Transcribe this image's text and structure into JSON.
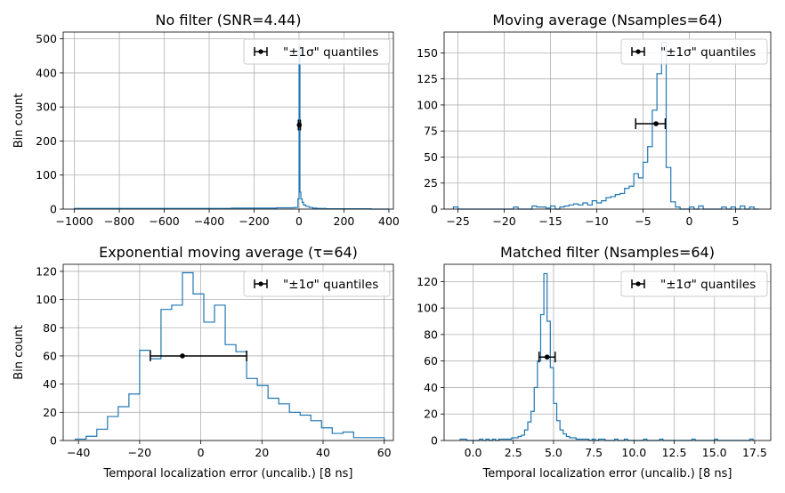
{
  "chart_data": [
    {
      "type": "histogram",
      "title": "No filter (SNR=4.44)",
      "xlabel": "",
      "ylabel": "Bin count",
      "xlim": [
        -1050,
        420
      ],
      "ylim": [
        0,
        520
      ],
      "xticks": [
        -1000,
        -800,
        -600,
        -400,
        -200,
        0,
        200,
        400
      ],
      "xtick_labels": [
        "−1000",
        "−800",
        "−600",
        "−400",
        "−200",
        "0",
        "200",
        "400"
      ],
      "yticks": [
        0,
        100,
        200,
        300,
        400,
        500
      ],
      "ytick_labels": [
        "0",
        "100",
        "200",
        "300",
        "400",
        "500"
      ],
      "grid": true,
      "legend": {
        "label": "\"±1σ\" quantiles",
        "placement": "top-right"
      },
      "series": [
        {
          "bin_edges": [
            -1000,
            -900,
            -800,
            -700,
            -600,
            -500,
            -400,
            -300,
            -200,
            -100,
            -20,
            -5,
            0,
            4,
            8,
            14,
            20,
            30,
            45,
            60,
            80,
            120,
            160,
            200,
            260,
            320,
            400
          ],
          "counts": [
            2,
            2,
            2,
            2,
            2,
            2,
            2,
            3,
            3,
            4,
            5,
            30,
            480,
            50,
            30,
            20,
            12,
            8,
            5,
            3,
            2,
            1,
            1,
            1,
            1,
            0
          ]
        }
      ],
      "quantile_marker": {
        "center": 1,
        "low": -3,
        "high": 6,
        "y": 247
      }
    },
    {
      "type": "histogram",
      "title": "Moving average (Nsamples=64)",
      "xlabel": "",
      "ylabel": "",
      "xlim": [
        -26.5,
        8.8
      ],
      "ylim": [
        0,
        170
      ],
      "xticks": [
        -25,
        -20,
        -15,
        -10,
        -5,
        0,
        5
      ],
      "xtick_labels": [
        "−25",
        "−20",
        "−15",
        "−10",
        "−5",
        "0",
        "5"
      ],
      "yticks": [
        0,
        25,
        50,
        75,
        100,
        125,
        150
      ],
      "ytick_labels": [
        "0",
        "25",
        "50",
        "75",
        "100",
        "125",
        "150"
      ],
      "grid": true,
      "legend": {
        "label": "\"±1σ\" quantiles",
        "placement": "top-right"
      },
      "series": [
        {
          "bin_edges": [
            -25.5,
            -25,
            -24.5,
            -24,
            -23.5,
            -23,
            -22.5,
            -22,
            -21.5,
            -21,
            -20.5,
            -20,
            -19.5,
            -19,
            -18.5,
            -18,
            -17.5,
            -17,
            -16.5,
            -16,
            -15.5,
            -15,
            -14.5,
            -14,
            -13.5,
            -13,
            -12.5,
            -12,
            -11.5,
            -11,
            -10.5,
            -10,
            -9.5,
            -9,
            -8.5,
            -8,
            -7.5,
            -7,
            -6.5,
            -6,
            -5.5,
            -5,
            -4.5,
            -4,
            -3.5,
            -3,
            -2.5,
            -2,
            -1.5,
            -1,
            -0.5,
            0,
            0.5,
            1,
            1.5,
            2,
            2.5,
            3,
            3.5,
            4,
            4.5,
            5,
            5.5,
            6,
            6.5,
            7,
            7.5
          ],
          "counts": [
            2,
            0,
            0,
            0,
            0,
            0,
            0,
            0,
            0,
            0,
            0,
            0,
            0,
            2,
            0,
            0,
            0,
            3,
            2,
            2,
            1,
            3,
            0,
            2,
            3,
            4,
            5,
            4,
            6,
            4,
            8,
            6,
            8,
            11,
            12,
            14,
            15,
            20,
            22,
            34,
            30,
            45,
            60,
            95,
            130,
            160,
            40,
            7,
            2,
            0,
            0,
            2,
            0,
            3,
            0,
            0,
            0,
            0,
            2,
            0,
            2,
            0,
            3,
            0,
            2,
            0
          ]
        }
      ],
      "quantile_marker": {
        "center": -3.6,
        "low": -5.8,
        "high": -2.6,
        "y": 82
      }
    },
    {
      "type": "histogram",
      "title": "Exponential moving average (τ=64)",
      "xlabel": "Temporal localization error (uncalib.) [8 ns]",
      "ylabel": "Bin count",
      "xlim": [
        -45,
        63
      ],
      "ylim": [
        0,
        125
      ],
      "xticks": [
        -40,
        -20,
        0,
        20,
        40,
        60
      ],
      "xtick_labels": [
        "−40",
        "−20",
        "0",
        "20",
        "40",
        "60"
      ],
      "yticks": [
        0,
        20,
        40,
        60,
        80,
        100,
        120
      ],
      "ytick_labels": [
        "0",
        "20",
        "40",
        "60",
        "80",
        "100",
        "120"
      ],
      "grid": true,
      "legend": {
        "label": "\"±1σ\" quantiles",
        "placement": "top-right"
      },
      "series": [
        {
          "bin_edges": [
            -41,
            -37.5,
            -34,
            -30.5,
            -27,
            -23.5,
            -20,
            -16.5,
            -13,
            -9.5,
            -6,
            -2.5,
            1,
            4.5,
            8,
            11.5,
            15,
            18.5,
            22,
            25.5,
            29,
            32.5,
            36,
            39.5,
            43,
            46.5,
            50,
            53.5,
            57,
            60
          ],
          "counts": [
            1,
            3,
            8,
            17,
            24,
            33,
            64,
            58,
            93,
            96,
            119,
            104,
            84,
            96,
            68,
            63,
            44,
            39,
            30,
            26,
            20,
            18,
            14,
            9,
            5,
            6,
            2,
            2,
            2
          ]
        }
      ],
      "quantile_marker": {
        "center": -6,
        "low": -16.5,
        "high": 15,
        "y": 60
      }
    },
    {
      "type": "histogram",
      "title": "Matched filter (Nsamples=64)",
      "xlabel": "Temporal localization error (uncalib.) [8 ns]",
      "ylabel": "",
      "xlim": [
        -1.8,
        18.5
      ],
      "ylim": [
        0,
        133
      ],
      "xticks": [
        0.0,
        2.5,
        5.0,
        7.5,
        10.0,
        12.5,
        15.0,
        17.5
      ],
      "xtick_labels": [
        "0.0",
        "2.5",
        "5.0",
        "7.5",
        "10.0",
        "12.5",
        "15.0",
        "17.5"
      ],
      "yticks": [
        0,
        20,
        40,
        60,
        80,
        100,
        120
      ],
      "ytick_labels": [
        "0",
        "20",
        "40",
        "60",
        "80",
        "100",
        "120"
      ],
      "grid": true,
      "legend": {
        "label": "\"±1σ\" quantiles",
        "placement": "top-right"
      },
      "series": [
        {
          "bin_edges": [
            -0.8,
            -0.6,
            -0.4,
            -0.2,
            0,
            0.2,
            0.4,
            0.6,
            0.8,
            1.0,
            1.2,
            1.4,
            1.6,
            1.8,
            2.0,
            2.2,
            2.4,
            2.6,
            2.8,
            3.0,
            3.2,
            3.4,
            3.6,
            3.8,
            4.0,
            4.2,
            4.4,
            4.6,
            4.8,
            5.0,
            5.2,
            5.4,
            5.6,
            5.8,
            6.0,
            6.2,
            6.4,
            6.6,
            6.8,
            7.0,
            7.2,
            7.4,
            7.6,
            7.8,
            8.0,
            8.2,
            8.4,
            8.6,
            8.8,
            9.0,
            9.2,
            9.4,
            9.6,
            9.8,
            10.0,
            10.2,
            10.4,
            10.6,
            10.8,
            11.0,
            11.2,
            11.4,
            11.6,
            11.8,
            12.0,
            12.2,
            12.4,
            12.6,
            12.8,
            13.0,
            13.2,
            13.4,
            13.6,
            13.8,
            14.0,
            14.2,
            14.4,
            14.6,
            14.8,
            15.0,
            15.2,
            15.4,
            15.6,
            15.8,
            16.0,
            16.2,
            16.4,
            16.6,
            16.8,
            17.0,
            17.2,
            17.4
          ],
          "counts": [
            1,
            1,
            0,
            0,
            0,
            0,
            1,
            0,
            1,
            0,
            1,
            0,
            1,
            1,
            1,
            1,
            2,
            2,
            3,
            4,
            8,
            14,
            22,
            40,
            60,
            95,
            126,
            90,
            55,
            28,
            15,
            8,
            5,
            3,
            2,
            2,
            1,
            1,
            1,
            1,
            0,
            1,
            0,
            1,
            1,
            0,
            0,
            0,
            1,
            0,
            0,
            1,
            0,
            0,
            0,
            0,
            0,
            1,
            0,
            0,
            0,
            0,
            1,
            0,
            0,
            0,
            0,
            0,
            0,
            0,
            0,
            0,
            1,
            0,
            0,
            0,
            0,
            0,
            0,
            1,
            0,
            0,
            0,
            0,
            0,
            0,
            0,
            0,
            0,
            0,
            1
          ]
        }
      ],
      "quantile_marker": {
        "center": 4.6,
        "low": 4.1,
        "high": 5.1,
        "y": 63
      }
    }
  ]
}
